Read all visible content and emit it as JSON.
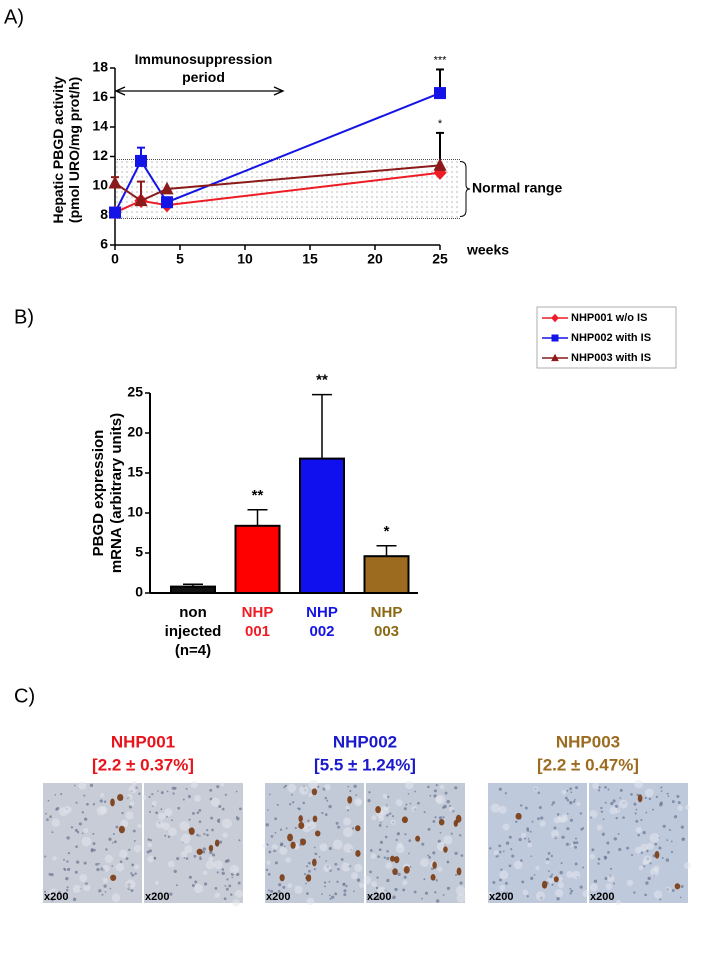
{
  "panel_labels": [
    "A)",
    "B)",
    "C)"
  ],
  "chart_data": [
    {
      "type": "line",
      "y_label": "Hepatic PBGD activity\n(pmol URO/mg prot/h)",
      "x_label": "weeks",
      "x": [
        0,
        2,
        4,
        25
      ],
      "xlim": [
        0,
        25
      ],
      "xticks": [
        0,
        5,
        10,
        15,
        20,
        25
      ],
      "ylim": [
        6,
        18
      ],
      "yticks": [
        6,
        8,
        10,
        12,
        14,
        16,
        18
      ],
      "normal_range": {
        "label": "Normal range",
        "range": [
          7.8,
          11.8
        ]
      },
      "period": {
        "label": "Immunosuppression\nperiod",
        "range": [
          0,
          13
        ]
      },
      "series": [
        {
          "name": "NHP001 w/o IS",
          "color": "#ee1c25",
          "marker": "diamond",
          "values": [
            8.2,
            9.0,
            8.7,
            10.9
          ],
          "errors": [
            null,
            null,
            0.3,
            null
          ],
          "significance": [
            null,
            null,
            null,
            null
          ]
        },
        {
          "name": "NHP002 with IS",
          "color": "#1414e6",
          "marker": "square",
          "values": [
            8.2,
            11.7,
            8.9,
            16.3
          ],
          "errors": [
            null,
            0.9,
            null,
            1.6
          ],
          "significance": [
            null,
            null,
            null,
            "***"
          ]
        },
        {
          "name": "NHP003 with IS",
          "color": "#8b1a1a",
          "marker": "triangle",
          "values": [
            10.2,
            9.0,
            9.8,
            11.4
          ],
          "errors": [
            0.4,
            1.3,
            null,
            2.2
          ],
          "significance": [
            null,
            null,
            null,
            "*"
          ]
        }
      ]
    },
    {
      "type": "bar",
      "y_label": "PBGD expression\nmRNA (arbitrary units)",
      "categories": [
        "non\ninjected\n(n=4)",
        "NHP\n001",
        "NHP\n002",
        "NHP\n003"
      ],
      "category_colors": [
        "#000000",
        "#ee1c25",
        "#1414e6",
        "#8b6914"
      ],
      "values": [
        0.8,
        8.4,
        16.8,
        4.6
      ],
      "errors": [
        0.3,
        2.0,
        8.0,
        1.3
      ],
      "significance": [
        null,
        "**",
        "**",
        "*"
      ],
      "colors": [
        "#111111",
        "#ff0000",
        "#1010ee",
        "#9c6b1f"
      ],
      "ylim": [
        0,
        25
      ],
      "yticks": [
        0,
        5,
        10,
        15,
        20,
        25
      ]
    }
  ],
  "histology": [
    {
      "name": "NHP001",
      "value": "[2.2 ± 0.37%]",
      "color": "#e8141b",
      "images": [
        "x200",
        "x200"
      ]
    },
    {
      "name": "NHP002",
      "value": "[5.5 ± 1.24%]",
      "color": "#1a1acc",
      "images": [
        "x200",
        "x200"
      ]
    },
    {
      "name": "NHP003",
      "value": "[2.2 ± 0.47%]",
      "color": "#9c6b1f",
      "images": [
        "x200",
        "x200"
      ]
    }
  ]
}
